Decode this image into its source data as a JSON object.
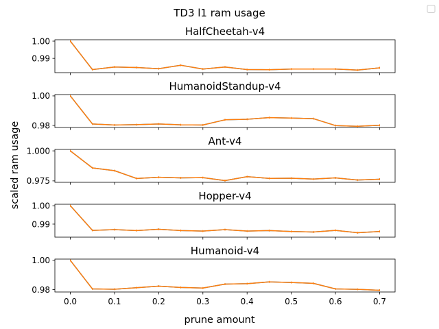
{
  "chart_data": {
    "type": "line",
    "suptitle": "TD3 l1 ram usage",
    "xlabel": "prune amount",
    "ylabel": "scaled ram usage",
    "legend": {
      "placement": "top-right",
      "entries": []
    },
    "grid": false,
    "x": [
      0.0,
      0.05,
      0.1,
      0.15,
      0.2,
      0.25,
      0.3,
      0.35,
      0.4,
      0.45,
      0.5,
      0.55,
      0.6,
      0.65,
      0.7
    ],
    "xticks": [
      "0.0",
      "0.1",
      "0.2",
      "0.3",
      "0.4",
      "0.5",
      "0.6",
      "0.7"
    ],
    "xtick_values": [
      0.0,
      0.1,
      0.2,
      0.3,
      0.4,
      0.5,
      0.6,
      0.7
    ],
    "xlim": [
      -0.035,
      0.735
    ],
    "colors": {
      "series_main": "#1f77b4",
      "series_overlay": "#ff7f0e"
    },
    "subplots": [
      {
        "title": "HalfCheetah-v4",
        "ylim": [
          0.9817,
          1.0008
        ],
        "yticks": [
          1.0,
          0.99
        ],
        "ytick_labels": [
          "1.00",
          "0.99"
        ],
        "values": [
          1.0,
          0.9835,
          0.985,
          0.9847,
          0.984,
          0.986,
          0.9838,
          0.985,
          0.9835,
          0.9834,
          0.9838,
          0.9838,
          0.9838,
          0.9832,
          0.9845
        ]
      },
      {
        "title": "HumanoidStandup-v4",
        "ylim": [
          0.9786,
          1.0009
        ],
        "yticks": [
          1.0,
          0.98
        ],
        "ytick_labels": [
          "1.00",
          "0.98"
        ],
        "values": [
          1.0,
          0.981,
          0.9803,
          0.9805,
          0.981,
          0.9804,
          0.9803,
          0.9838,
          0.9842,
          0.9853,
          0.985,
          0.9846,
          0.9799,
          0.9794,
          0.9801
        ]
      },
      {
        "title": "Ant-v4",
        "ylim": [
          0.9738,
          1.0012
        ],
        "yticks": [
          1.0,
          0.975
        ],
        "ytick_labels": [
          "1.000",
          "0.975"
        ],
        "values": [
          1.0,
          0.9858,
          0.9835,
          0.977,
          0.978,
          0.9775,
          0.9777,
          0.9752,
          0.9785,
          0.9771,
          0.9772,
          0.9765,
          0.9775,
          0.9757,
          0.9764
        ]
      },
      {
        "title": "Hopper-v4",
        "ylim": [
          0.9829,
          1.0008
        ],
        "yticks": [
          1.0,
          0.99
        ],
        "ytick_labels": [
          "1.00",
          "0.99"
        ],
        "values": [
          1.0,
          0.9866,
          0.987,
          0.9865,
          0.9872,
          0.9865,
          0.9862,
          0.987,
          0.9862,
          0.9865,
          0.986,
          0.9857,
          0.9866,
          0.9853,
          0.986
        ]
      },
      {
        "title": "Humanoid-v4",
        "ylim": [
          0.9784,
          1.0009
        ],
        "yticks": [
          1.0,
          0.98
        ],
        "ytick_labels": [
          "1.00",
          "0.98"
        ],
        "values": [
          1.0,
          0.9805,
          0.9803,
          0.9813,
          0.9824,
          0.9815,
          0.9811,
          0.9838,
          0.9841,
          0.9853,
          0.9849,
          0.9843,
          0.9805,
          0.9802,
          0.9796
        ]
      }
    ]
  }
}
